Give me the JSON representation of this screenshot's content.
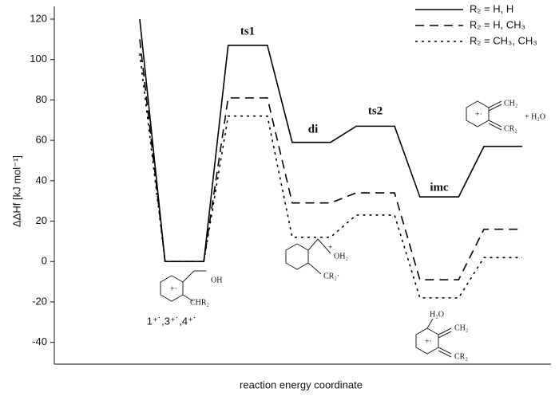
{
  "chart_data": {
    "type": "line",
    "y_label": "ΔΔHf [kJ mol⁻¹]",
    "x_label": "reaction energy coordinate",
    "x": [
      17.2,
      22.3,
      30.1,
      35.0,
      42.9,
      47.9,
      55.6,
      60.8,
      68.5,
      73.6,
      81.4,
      86.5,
      94.2
    ],
    "xlim": [
      0,
      100
    ],
    "ylim": [
      -50,
      120
    ],
    "yticks": [
      -40,
      -20,
      0,
      20,
      40,
      60,
      80,
      100,
      120
    ],
    "legend": "top-right",
    "series": [
      {
        "name": "R₂ = H, H",
        "color": "#000000",
        "dash": "solid",
        "values": [
          120,
          0,
          0,
          107,
          107,
          59,
          59,
          67,
          67,
          32,
          32,
          57,
          57
        ]
      },
      {
        "name": "R₂ = H, CH₃",
        "color": "#000000",
        "dash": "dashed",
        "values": [
          110,
          0,
          0,
          81,
          81,
          29,
          29,
          34,
          34,
          -9,
          -9,
          16,
          16
        ]
      },
      {
        "name": "R₂ = CH₃, CH₃",
        "color": "#000000",
        "dash": "dotted",
        "values": [
          103,
          0,
          0,
          72,
          72,
          12,
          12,
          23,
          23,
          -18,
          -18,
          2,
          2
        ]
      }
    ],
    "annotations": [
      "ts1",
      "di",
      "ts2",
      "imc",
      "1⁺˙,3⁺˙,4⁺˙",
      "OH",
      "CHR₂",
      "+·",
      "OH₂",
      "+",
      "CR₂·",
      "CH₂",
      "CR₂",
      "+ H₂O",
      "+·",
      "H₂O",
      "CH₂",
      "CR₂",
      "+·"
    ]
  }
}
